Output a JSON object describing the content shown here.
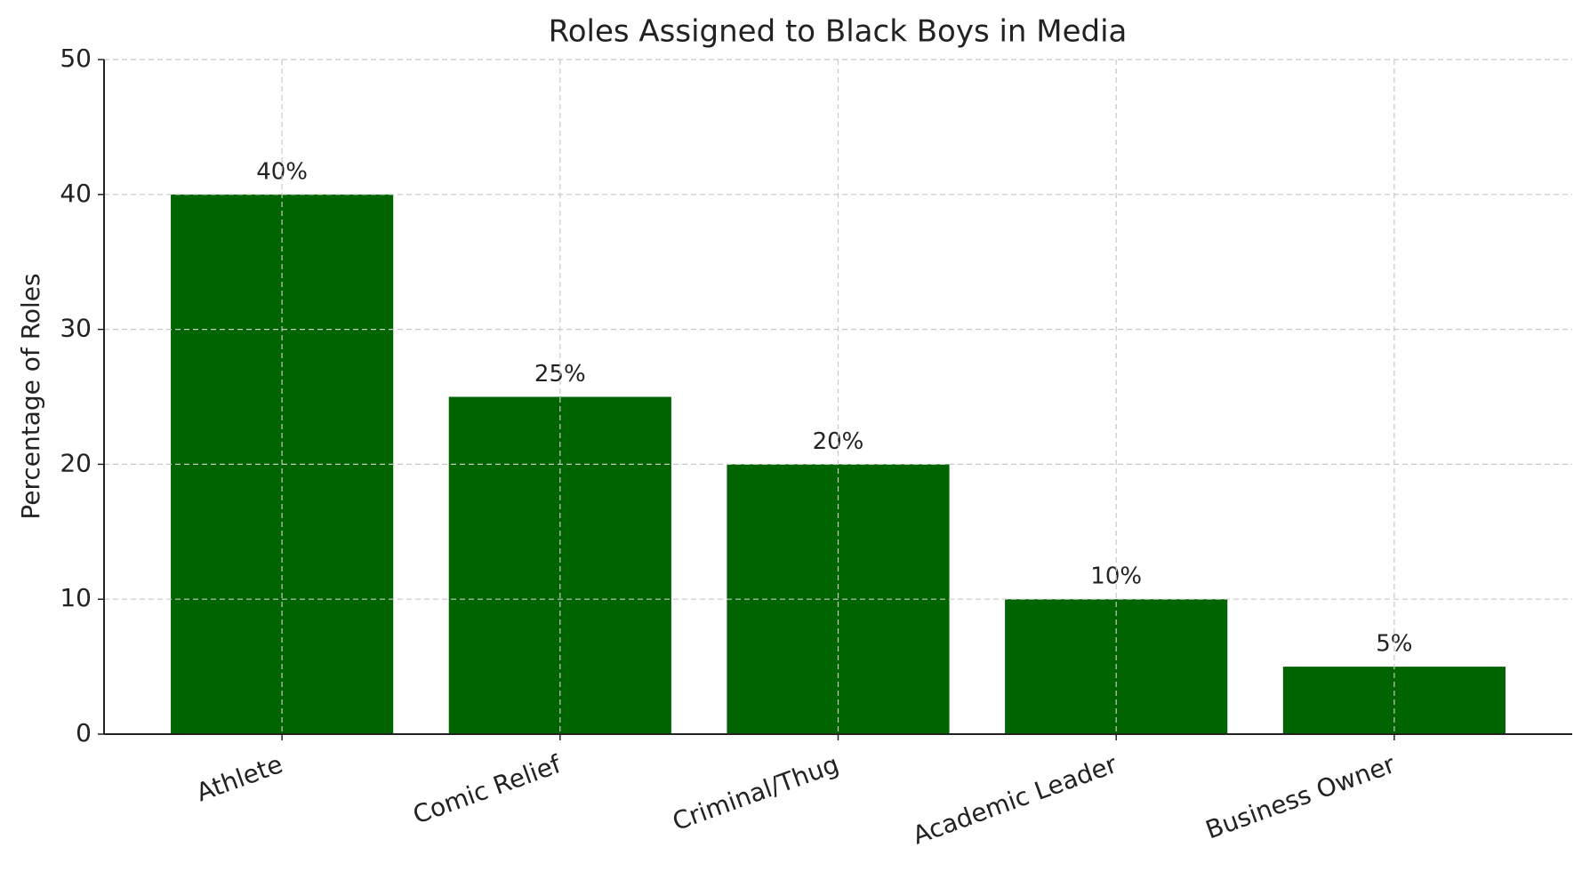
{
  "chart_data": {
    "type": "bar",
    "title": "Roles Assigned to Black Boys in Media",
    "ylabel": "Percentage of Roles",
    "categories": [
      "Athlete",
      "Comic Relief",
      "Criminal/Thug",
      "Academic Leader",
      "Business Owner"
    ],
    "values": [
      40,
      25,
      20,
      10,
      5
    ],
    "value_labels": [
      "40%",
      "25%",
      "20%",
      "10%",
      "5%"
    ],
    "color": "#006400",
    "ylim": [
      0,
      50
    ],
    "yticks": [
      0,
      10,
      20,
      30,
      40,
      50
    ],
    "grid": true
  }
}
